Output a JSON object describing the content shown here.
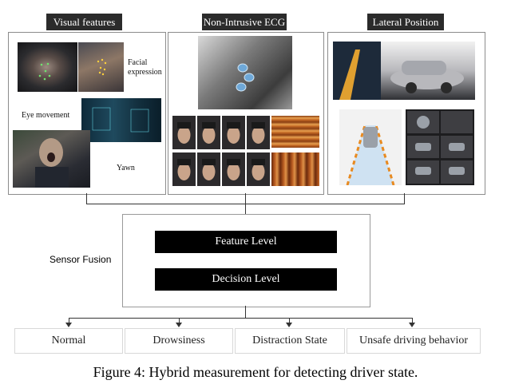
{
  "panels": {
    "visual": {
      "title": "Visual features",
      "labels": {
        "facial": "Facial expression",
        "eye": "Eye movement",
        "yawn": "Yawn"
      }
    },
    "ecg": {
      "title": "Non-Intrusive ECG"
    },
    "lateral": {
      "title": "Lateral Position"
    }
  },
  "fusion": {
    "label": "Sensor Fusion",
    "feature_level": "Feature Level",
    "decision_level": "Decision Level"
  },
  "states": [
    "Normal",
    "Drowsiness",
    "Distraction State",
    "Unsafe driving behavior"
  ],
  "caption": "Figure 4: Hybrid measurement for detecting driver state."
}
